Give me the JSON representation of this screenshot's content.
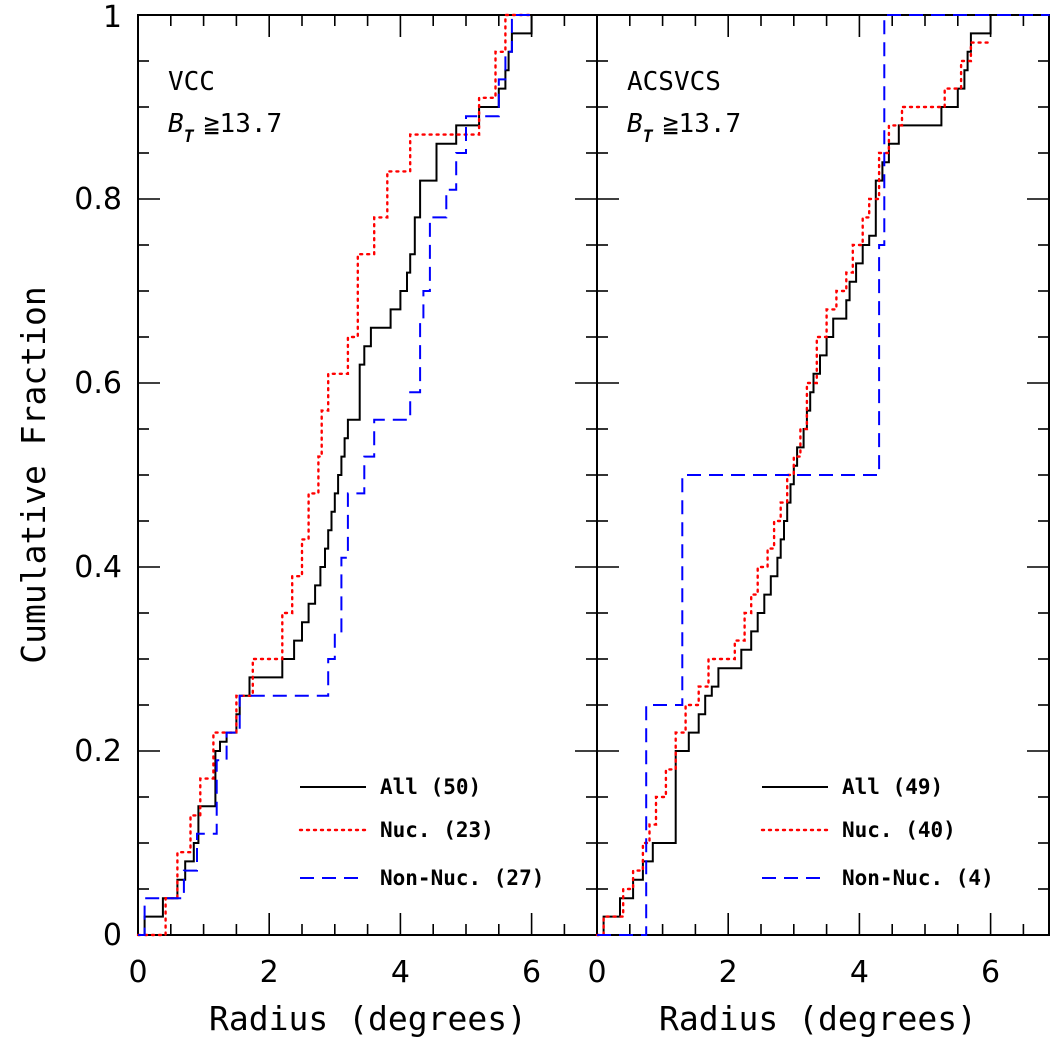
{
  "figure": {
    "ylabel": "Cumulative Fraction",
    "ytick_labels": [
      "0",
      "0.2",
      "0.4",
      "0.6",
      "0.8",
      "1"
    ]
  },
  "chart_data": [
    {
      "type": "line",
      "step": "post",
      "panel_label": "VCC",
      "condition_symbol": "B",
      "condition_subscript": "T",
      "condition_text": "≧13.7",
      "xlabel": "Radius (degrees)",
      "ylabel": "Cumulative Fraction",
      "xlim": [
        0,
        6.9
      ],
      "ylim": [
        0,
        1
      ],
      "xtick_labels": [
        "0",
        "2",
        "4",
        "6"
      ],
      "legend_position": "bottom-right",
      "series": [
        {
          "name": "All (50)",
          "color": "#000000",
          "dash": "solid",
          "x": [
            0,
            0.1,
            0.38,
            0.6,
            0.72,
            0.85,
            0.92,
            1.18,
            1.25,
            1.35,
            1.5,
            1.55,
            1.6,
            1.7,
            2.2,
            2.38,
            2.5,
            2.6,
            2.7,
            2.78,
            2.85,
            2.9,
            2.95,
            3.0,
            3.05,
            3.1,
            3.15,
            3.2,
            3.25,
            3.38,
            3.45,
            3.55,
            3.7,
            3.85,
            4.0,
            4.1,
            4.15,
            4.22,
            4.3,
            4.38,
            4.55,
            4.7,
            4.85,
            5.2,
            5.5,
            5.6,
            5.65,
            5.7,
            6.0
          ],
          "y": [
            0,
            0.02,
            0.04,
            0.06,
            0.08,
            0.1,
            0.14,
            0.2,
            0.21,
            0.22,
            0.24,
            0.26,
            0.26,
            0.28,
            0.3,
            0.32,
            0.34,
            0.36,
            0.38,
            0.4,
            0.42,
            0.44,
            0.46,
            0.48,
            0.5,
            0.52,
            0.54,
            0.56,
            0.56,
            0.62,
            0.64,
            0.66,
            0.66,
            0.68,
            0.7,
            0.72,
            0.74,
            0.78,
            0.82,
            0.82,
            0.86,
            0.86,
            0.88,
            0.9,
            0.92,
            0.94,
            0.96,
            0.98,
            1.0
          ]
        },
        {
          "name": "Nuc. (23)",
          "color": "#ff0000",
          "dash": "dotted",
          "x": [
            0,
            0.38,
            0.42,
            0.6,
            0.8,
            0.95,
            1.15,
            1.3,
            1.5,
            1.6,
            1.75,
            2.2,
            2.35,
            2.5,
            2.6,
            2.75,
            2.8,
            2.9,
            3.0,
            3.2,
            3.35,
            3.5,
            3.6,
            3.8,
            4.0,
            4.15,
            4.25,
            4.5,
            5.2,
            5.45,
            5.6,
            5.75,
            6.0
          ],
          "y": [
            0,
            0.0,
            0.04,
            0.09,
            0.13,
            0.17,
            0.22,
            0.22,
            0.26,
            0.26,
            0.3,
            0.35,
            0.39,
            0.43,
            0.48,
            0.52,
            0.57,
            0.61,
            0.61,
            0.65,
            0.74,
            0.74,
            0.78,
            0.83,
            0.83,
            0.87,
            0.87,
            0.87,
            0.91,
            0.96,
            1.0,
            1.0,
            1.0
          ]
        },
        {
          "name": "Non-Nuc. (27)",
          "color": "#0000ff",
          "dash": "dashed",
          "x": [
            0,
            0.1,
            0.35,
            0.7,
            0.9,
            1.2,
            1.35,
            1.55,
            2.8,
            2.9,
            3.0,
            3.1,
            3.2,
            3.35,
            3.45,
            3.5,
            3.6,
            4.15,
            4.3,
            4.35,
            4.45,
            4.7,
            4.85,
            5.0,
            5.5,
            5.6,
            5.7,
            6.0
          ],
          "y": [
            0,
            0.04,
            0.04,
            0.07,
            0.11,
            0.19,
            0.22,
            0.26,
            0.26,
            0.3,
            0.33,
            0.41,
            0.48,
            0.48,
            0.52,
            0.52,
            0.56,
            0.59,
            0.67,
            0.7,
            0.78,
            0.81,
            0.85,
            0.89,
            0.93,
            0.96,
            1.0,
            1.0
          ]
        }
      ]
    },
    {
      "type": "line",
      "step": "post",
      "panel_label": "ACSVCS",
      "condition_symbol": "B",
      "condition_subscript": "T",
      "condition_text": "≧13.7",
      "xlabel": "Radius (degrees)",
      "ylabel": "Cumulative Fraction",
      "xlim": [
        0,
        6.9
      ],
      "ylim": [
        0,
        1
      ],
      "xtick_labels": [
        "0",
        "2",
        "4",
        "6"
      ],
      "legend_position": "bottom-right",
      "series": [
        {
          "name": "All (49)",
          "color": "#000000",
          "dash": "solid",
          "x": [
            0,
            0.1,
            0.35,
            0.55,
            0.7,
            0.85,
            1.2,
            1.4,
            1.55,
            1.65,
            1.75,
            1.85,
            2.2,
            2.35,
            2.45,
            2.55,
            2.65,
            2.75,
            2.8,
            2.85,
            2.9,
            2.95,
            3.0,
            3.05,
            3.15,
            3.2,
            3.25,
            3.3,
            3.4,
            3.5,
            3.6,
            3.8,
            3.85,
            3.95,
            4.05,
            4.15,
            4.25,
            4.35,
            4.45,
            4.6,
            5.25,
            5.5,
            5.6,
            5.65,
            5.7,
            6.0
          ],
          "y": [
            0,
            0.02,
            0.04,
            0.06,
            0.08,
            0.1,
            0.2,
            0.22,
            0.24,
            0.26,
            0.27,
            0.29,
            0.31,
            0.33,
            0.35,
            0.37,
            0.39,
            0.41,
            0.43,
            0.45,
            0.47,
            0.49,
            0.51,
            0.53,
            0.55,
            0.57,
            0.59,
            0.61,
            0.63,
            0.65,
            0.67,
            0.69,
            0.71,
            0.73,
            0.75,
            0.76,
            0.82,
            0.84,
            0.86,
            0.88,
            0.9,
            0.92,
            0.94,
            0.96,
            0.98,
            1.0
          ]
        },
        {
          "name": "Nuc. (40)",
          "color": "#ff0000",
          "dash": "dotted",
          "x": [
            0,
            0.1,
            0.4,
            0.55,
            0.7,
            0.8,
            0.9,
            1.05,
            1.2,
            1.35,
            1.55,
            1.7,
            1.85,
            2.1,
            2.25,
            2.35,
            2.45,
            2.6,
            2.7,
            2.8,
            2.9,
            3.0,
            3.1,
            3.2,
            3.35,
            3.5,
            3.65,
            3.8,
            3.9,
            4.05,
            4.15,
            4.3,
            4.45,
            4.65,
            5.3,
            5.55,
            5.7,
            5.8,
            6.0
          ],
          "y": [
            0,
            0.02,
            0.05,
            0.07,
            0.1,
            0.12,
            0.15,
            0.18,
            0.22,
            0.25,
            0.27,
            0.3,
            0.3,
            0.32,
            0.35,
            0.37,
            0.4,
            0.42,
            0.45,
            0.47,
            0.5,
            0.52,
            0.55,
            0.6,
            0.65,
            0.68,
            0.7,
            0.72,
            0.75,
            0.78,
            0.8,
            0.85,
            0.88,
            0.9,
            0.92,
            0.95,
            0.97,
            0.97,
            0.97
          ]
        },
        {
          "name": "Non-Nuc. (4)",
          "color": "#0000ff",
          "dash": "dashed",
          "x": [
            0,
            0.75,
            1.3,
            4.3,
            4.38,
            6.9
          ],
          "y": [
            0,
            0.25,
            0.5,
            0.75,
            1.0,
            1.0
          ]
        }
      ]
    }
  ]
}
